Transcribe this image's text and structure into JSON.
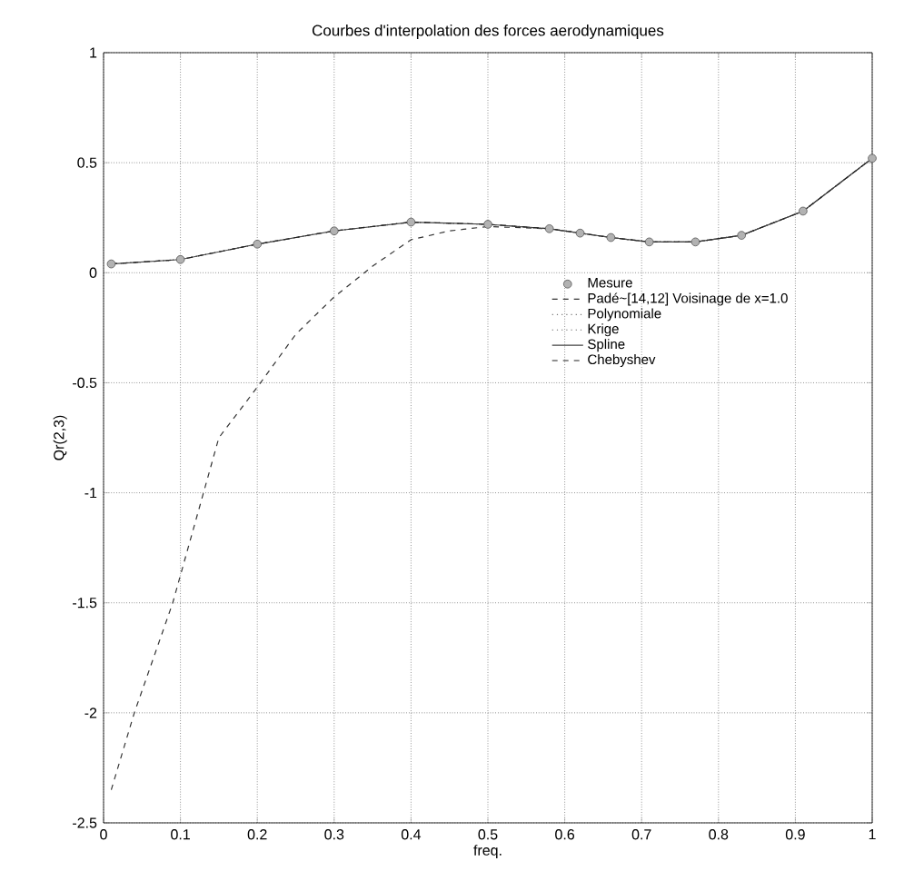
{
  "chart_data": {
    "type": "line",
    "title": "Courbes d'interpolation des forces aerodynamiques",
    "xlabel": "freq.",
    "ylabel": "Qr(2,3)",
    "xlim": [
      0,
      1
    ],
    "ylim": [
      -2.5,
      1
    ],
    "xticks": [
      0,
      0.1,
      0.2,
      0.3,
      0.4,
      0.5,
      0.6,
      0.7,
      0.8,
      0.9,
      1
    ],
    "yticks": [
      -2.5,
      -2,
      -1.5,
      -1,
      -0.5,
      0,
      0.5,
      1
    ],
    "grid": true,
    "legend": "right",
    "series": [
      {
        "name": "Mesure",
        "type": "scatter",
        "marker": "circle",
        "color": "#555555",
        "x": [
          0.01,
          0.1,
          0.2,
          0.3,
          0.4,
          0.5,
          0.58,
          0.62,
          0.66,
          0.71,
          0.77,
          0.83,
          0.91,
          1
        ],
        "values": [
          0.04,
          0.06,
          0.13,
          0.19,
          0.23,
          0.22,
          0.2,
          0.18,
          0.16,
          0.14,
          0.14,
          0.17,
          0.28,
          0.52
        ]
      },
      {
        "name": "Padé~[14,12] Voisinage de x=1.0",
        "line_style": "dashed",
        "color": "#333333",
        "x": [
          0.01,
          0.04,
          0.09,
          0.13,
          0.15,
          0.2,
          0.25,
          0.3,
          0.35,
          0.4,
          0.45,
          0.5,
          0.58,
          0.62,
          0.66,
          0.71,
          0.77,
          0.83,
          0.91,
          1
        ],
        "values": [
          -2.35,
          -2,
          -1.5,
          -1,
          -0.75,
          -0.52,
          -0.28,
          -0.11,
          0.03,
          0.15,
          0.19,
          0.21,
          0.2,
          0.18,
          0.16,
          0.14,
          0.14,
          0.17,
          0.28,
          0.52
        ]
      },
      {
        "name": "Polynomiale",
        "line_style": "dotted",
        "color": "#777777",
        "x": [
          0.01,
          0.1,
          0.2,
          0.3,
          0.4,
          0.5,
          0.58,
          0.62,
          0.66,
          0.71,
          0.77,
          0.83,
          0.91,
          1
        ],
        "values": [
          0.04,
          0.06,
          0.13,
          0.19,
          0.23,
          0.22,
          0.2,
          0.18,
          0.16,
          0.14,
          0.14,
          0.17,
          0.28,
          0.52
        ]
      },
      {
        "name": "Krige",
        "line_style": "dotted",
        "color": "#666666",
        "x": [
          0.01,
          0.1,
          0.2,
          0.3,
          0.4,
          0.5,
          0.58,
          0.62,
          0.66,
          0.71,
          0.77,
          0.83,
          0.91,
          1
        ],
        "values": [
          0.04,
          0.06,
          0.13,
          0.19,
          0.23,
          0.22,
          0.2,
          0.18,
          0.16,
          0.14,
          0.14,
          0.17,
          0.28,
          0.52
        ]
      },
      {
        "name": "Spline",
        "line_style": "solid",
        "color": "#444444",
        "x": [
          0.01,
          0.1,
          0.2,
          0.3,
          0.4,
          0.5,
          0.58,
          0.62,
          0.66,
          0.71,
          0.77,
          0.83,
          0.91,
          1
        ],
        "values": [
          0.04,
          0.06,
          0.13,
          0.19,
          0.23,
          0.22,
          0.2,
          0.18,
          0.16,
          0.14,
          0.14,
          0.17,
          0.28,
          0.52
        ]
      },
      {
        "name": "Chebyshev",
        "line_style": "dashed",
        "color": "#222222",
        "x": [
          0.01,
          0.1,
          0.2,
          0.3,
          0.4,
          0.5,
          0.58,
          0.62,
          0.66,
          0.71,
          0.77,
          0.83,
          0.91,
          1
        ],
        "values": [
          0.04,
          0.06,
          0.13,
          0.19,
          0.23,
          0.22,
          0.2,
          0.18,
          0.16,
          0.14,
          0.14,
          0.17,
          0.28,
          0.52
        ]
      }
    ]
  }
}
